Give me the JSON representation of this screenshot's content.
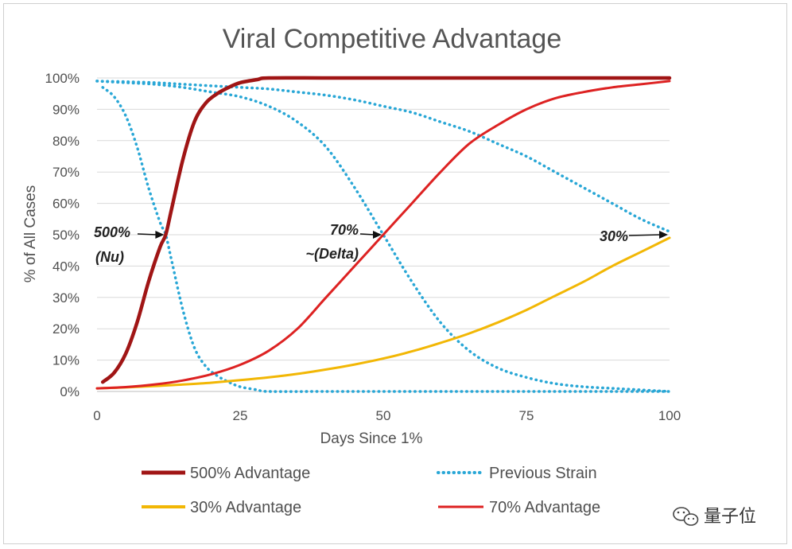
{
  "chart_data": {
    "type": "line",
    "title": "Viral Competitive Advantage",
    "xlabel": "Days Since 1%",
    "ylabel": "% of All Cases",
    "xlim": [
      0,
      100
    ],
    "ylim": [
      0,
      100
    ],
    "x_ticks": [
      0,
      25,
      50,
      75,
      100
    ],
    "x_tick_labels": [
      "0",
      "25",
      "50",
      "75",
      "100"
    ],
    "y_ticks": [
      0,
      10,
      20,
      30,
      40,
      50,
      60,
      70,
      80,
      90,
      100
    ],
    "y_tick_labels": [
      "0%",
      "10%",
      "20%",
      "30%",
      "40%",
      "50%",
      "60%",
      "70%",
      "80%",
      "90%",
      "100%"
    ],
    "grid": "horizontal",
    "legend_position": "bottom",
    "x": [
      0,
      5,
      10,
      15,
      20,
      25,
      30,
      35,
      40,
      45,
      50,
      55,
      60,
      65,
      70,
      75,
      80,
      85,
      90,
      95,
      100
    ],
    "series": [
      {
        "name": "500% Advantage",
        "style": "solid-thick",
        "color": "#a01515",
        "x": [
          1,
          3,
          5,
          7,
          9,
          11,
          12,
          13,
          15,
          17,
          19,
          21,
          23,
          25,
          28,
          30,
          40,
          50,
          60,
          70,
          80,
          90,
          100
        ],
        "values": [
          3,
          6,
          12,
          22,
          35,
          46,
          50,
          58,
          74,
          86,
          92,
          95,
          97,
          98.5,
          99.5,
          100,
          100,
          100,
          100,
          100,
          100,
          100,
          100
        ]
      },
      {
        "name": "Previous Strain",
        "style": "dotted",
        "color": "#29a7d6",
        "subseries": [
          {
            "label": "vs 500%",
            "x": [
              1,
              3,
              5,
              7,
              9,
              11,
              12,
              13,
              15,
              17,
              19,
              21,
              23,
              25,
              28,
              30,
              40,
              50,
              60,
              70,
              80,
              90,
              100
            ],
            "values": [
              97,
              94,
              88,
              78,
              65,
              54,
              50,
              42,
              26,
              14,
              8,
              5,
              3,
              1.5,
              0.5,
              0,
              0,
              0,
              0,
              0,
              0,
              0,
              0
            ]
          },
          {
            "label": "vs 70%",
            "x": [
              0,
              5,
              10,
              15,
              20,
              25,
              30,
              35,
              40,
              45,
              50,
              55,
              60,
              65,
              70,
              75,
              80,
              85,
              90,
              95,
              100
            ],
            "values": [
              99,
              98.5,
              98,
              97,
              95.5,
              94,
              91,
              86,
              78,
              65,
              50,
              35,
              22,
              13,
              7.5,
              4.5,
              2.5,
              1.5,
              1,
              0.5,
              0
            ]
          },
          {
            "label": "vs 30%",
            "x": [
              0,
              5,
              10,
              15,
              20,
              25,
              30,
              35,
              40,
              45,
              50,
              55,
              60,
              65,
              70,
              75,
              80,
              85,
              90,
              95,
              100
            ],
            "values": [
              99,
              98.8,
              98.5,
              98,
              97.5,
              97,
              96.5,
              95.5,
              94.5,
              93,
              91,
              89,
              86,
              83,
              79,
              75,
              70,
              65,
              60,
              55,
              51
            ]
          }
        ]
      },
      {
        "name": "30% Advantage",
        "style": "solid",
        "color": "#f2b705",
        "x": [
          0,
          5,
          10,
          15,
          20,
          25,
          30,
          35,
          40,
          45,
          50,
          55,
          60,
          65,
          70,
          75,
          80,
          85,
          90,
          95,
          100
        ],
        "values": [
          1,
          1.3,
          1.7,
          2.2,
          2.8,
          3.6,
          4.5,
          5.6,
          7,
          8.6,
          10.5,
          12.8,
          15.5,
          18.5,
          22,
          26,
          30.5,
          35,
          40,
          44.5,
          49
        ]
      },
      {
        "name": "70% Advantage",
        "style": "solid",
        "color": "#dd2222",
        "x": [
          0,
          5,
          10,
          15,
          20,
          25,
          30,
          35,
          40,
          45,
          50,
          55,
          60,
          65,
          70,
          75,
          80,
          85,
          90,
          95,
          100
        ],
        "values": [
          1,
          1.4,
          2.2,
          3.5,
          5.5,
          8.5,
          13,
          20,
          30,
          40,
          50,
          60,
          70,
          79,
          85,
          90,
          93.5,
          95.5,
          97,
          98,
          99
        ]
      }
    ],
    "annotations": [
      {
        "name": "annotation-500",
        "line1": "500%",
        "line2": "(Nu)",
        "point": [
          12,
          50
        ]
      },
      {
        "name": "annotation-70",
        "line1": "70%",
        "line2": "~(Delta)",
        "point": [
          50,
          50
        ]
      },
      {
        "name": "annotation-30",
        "line1": "30%",
        "line2": "",
        "point": [
          100,
          50
        ]
      }
    ],
    "legend": [
      {
        "label": "500% Advantage",
        "color": "#a01515",
        "style": "solid-thick"
      },
      {
        "label": "Previous Strain",
        "color": "#29a7d6",
        "style": "dotted"
      },
      {
        "label": "30% Advantage",
        "color": "#f2b705",
        "style": "solid"
      },
      {
        "label": "70% Advantage",
        "color": "#dd2222",
        "style": "solid"
      }
    ]
  },
  "watermark": {
    "text": "量子位",
    "icon": "wechat-icon"
  }
}
